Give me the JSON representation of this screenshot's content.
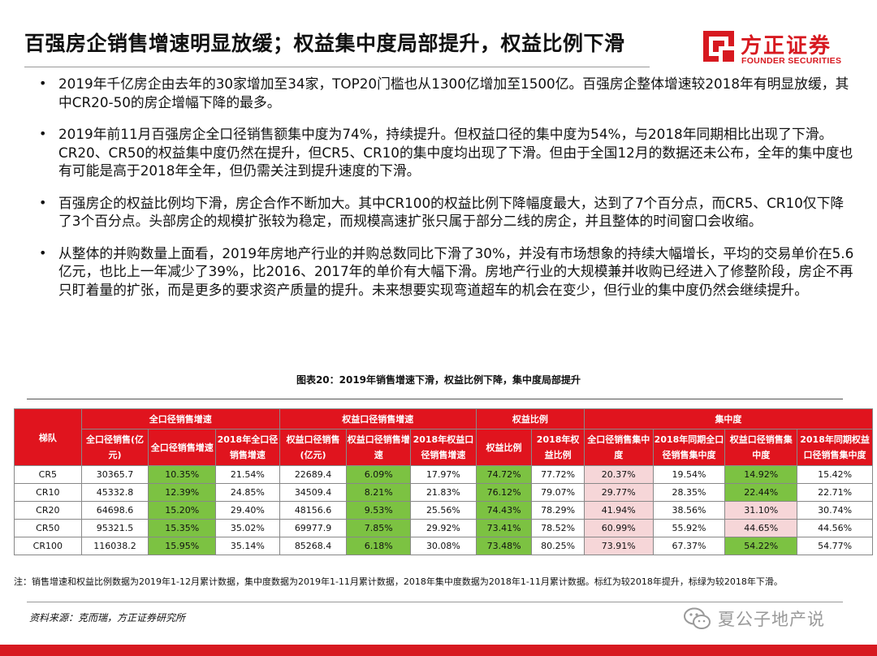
{
  "header": {
    "title": "百强房企销售增速明显放缓；权益集中度局部提升，权益比例下滑",
    "logo_cn": "方正证券",
    "logo_en": "FOUNDER SECURITIES",
    "brand_color": "#d71920"
  },
  "bullets": [
    "2019年千亿房企由去年的30家增加至34家，TOP20门槛也从1300亿增加至1500亿。百强房企整体增速较2018年有明显放缓，其中CR20-50的房企增幅下降的最多。",
    "2019年前11月百强房企全口径销售额集中度为74%，持续提升。但权益口径的集中度为54%，与2018年同期相比出现了下滑。CR20、CR50的权益集中度仍然在提升，但CR5、CR10的集中度均出现了下滑。但由于全国12月的数据还未公布，全年的集中度也有可能是高于2018年全年，但仍需关注到提升速度的下滑。",
    "百强房企的权益比例均下滑，房企合作不断加大。其中CR100的权益比例下降幅度最大，达到了7个百分点，而CR5、CR10仅下降了3个百分点。头部房企的规模扩张较为稳定，而规模高速扩张只属于部分二线的房企，并且整体的时间窗口会收缩。",
    "从整体的并购数量上面看，2019年房地产行业的并购总数同比下滑了30%，并没有市场想象的持续大幅增长，平均的交易单价在5.6亿元，也比上一年减少了39%，比2016、2017年的单价有大幅下滑。房地产行业的大规模兼并收购已经进入了修整阶段，房企不再只盯着量的扩张，而是更多的要求资产质量的提升。未来想要实现弯道超车的机会在变少，但行业的集中度仍然会继续提升。"
  ],
  "figure": {
    "title": "图表20：2019年销售增速下滑，权益比例下降，集中度局部提升"
  },
  "table": {
    "group_headers": [
      "梯队",
      "全口径销售增速",
      "权益口径销售增速",
      "权益比例",
      "集中度"
    ],
    "columns": [
      "全口径销售(亿元)",
      "全口径销售增速",
      "2018年全口径销售增速",
      "权益口径销售(亿元)",
      "权益口径销售增速",
      "2018年权益口径销售增速",
      "权益比例",
      "2018年权益比例",
      "全口径销售集中度",
      "2018年同期全口径销售集中度",
      "权益口径销售集中度",
      "2018年同期权益口径销售集中度"
    ],
    "rows": [
      {
        "tier": "CR5",
        "cells": [
          "30365.7",
          "10.35%",
          "21.54%",
          "22689.4",
          "6.09%",
          "17.97%",
          "74.72%",
          "77.72%",
          "20.37%",
          "19.54%",
          "14.92%",
          "15.42%"
        ]
      },
      {
        "tier": "CR10",
        "cells": [
          "45332.8",
          "12.39%",
          "24.85%",
          "34509.4",
          "8.21%",
          "21.83%",
          "76.12%",
          "79.07%",
          "29.77%",
          "28.35%",
          "22.44%",
          "22.71%"
        ]
      },
      {
        "tier": "CR20",
        "cells": [
          "64698.6",
          "15.20%",
          "29.40%",
          "48156.6",
          "9.53%",
          "25.56%",
          "74.43%",
          "78.29%",
          "41.94%",
          "38.56%",
          "31.10%",
          "30.74%"
        ]
      },
      {
        "tier": "CR50",
        "cells": [
          "95321.5",
          "15.35%",
          "35.02%",
          "69977.9",
          "7.85%",
          "29.92%",
          "73.41%",
          "78.52%",
          "60.99%",
          "55.92%",
          "44.65%",
          "44.56%"
        ]
      },
      {
        "tier": "CR100",
        "cells": [
          "116038.2",
          "15.95%",
          "35.14%",
          "85268.4",
          "6.18%",
          "30.08%",
          "73.48%",
          "80.25%",
          "73.91%",
          "67.37%",
          "54.22%",
          "54.77%"
        ]
      }
    ],
    "header_bg": "#e0141e",
    "green": "#7cc242",
    "pink": "#f6d6d8"
  },
  "note": "注：销售增速和权益比例数据为2019年1-12月累计数据，集中度数据为2019年1-11月累计数据，2018年集中度数据为2018年1-11月累计数据。标红为较2018年提升，标绿为较2018年下滑。",
  "source": "资料来源：克而瑞，方正证券研究所",
  "watermark": "夏公子地产说"
}
